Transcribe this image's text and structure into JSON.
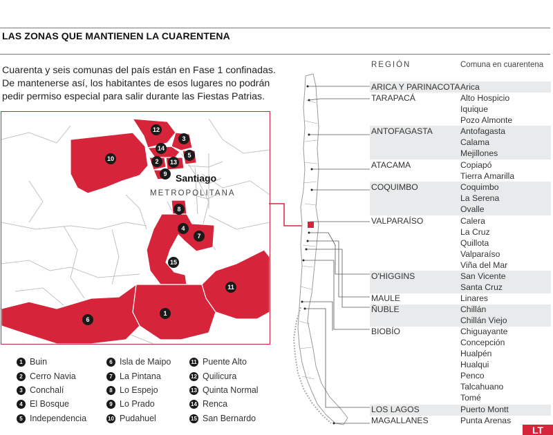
{
  "title": "LAS ZONAS QUE MANTIENEN LA CUARENTENA",
  "intro": [
    "Cuarenta y seis comunas del país están en Fase 1 confinadas.",
    "De mantenerse así, los habitantes de esos lugares no podrán",
    "pedir permiso especial para salir durante las Fiestas Patrias."
  ],
  "map": {
    "city_label": "Santiago",
    "region_label": "METROPOLITANA",
    "markers": [
      "1",
      "2",
      "3",
      "4",
      "5",
      "6",
      "7",
      "8",
      "9",
      "10",
      "11",
      "12",
      "13",
      "14",
      "15"
    ]
  },
  "legend": [
    {
      "num": "1",
      "name": "Buin"
    },
    {
      "num": "2",
      "name": "Cerro Navia"
    },
    {
      "num": "3",
      "name": "Conchalí"
    },
    {
      "num": "4",
      "name": "El Bosque"
    },
    {
      "num": "5",
      "name": "Independencia"
    },
    {
      "num": "6",
      "name": "Isla de Maipo"
    },
    {
      "num": "7",
      "name": "La Pintana"
    },
    {
      "num": "8",
      "name": "Lo Espejo"
    },
    {
      "num": "9",
      "name": "Lo Prado"
    },
    {
      "num": "10",
      "name": "Pudahuel"
    },
    {
      "num": "11",
      "name": "Puente Alto"
    },
    {
      "num": "12",
      "name": "Quilicura"
    },
    {
      "num": "13",
      "name": "Quinta Normal"
    },
    {
      "num": "14",
      "name": "Renca"
    },
    {
      "num": "15",
      "name": "San Bernardo"
    }
  ],
  "table": {
    "header_region": "REGIÓN",
    "header_comuna": "Comuna en cuarentena",
    "regions": [
      {
        "name": "ARICA Y PARINACOTA",
        "comunas": [
          "Arica"
        ]
      },
      {
        "name": "TARAPACÁ",
        "comunas": [
          "Alto Hospicio",
          "Iquique",
          "Pozo Almonte"
        ]
      },
      {
        "name": "ANTOFAGASTA",
        "comunas": [
          "Antofagasta",
          "Calama",
          "Mejillones"
        ]
      },
      {
        "name": "ATACAMA",
        "comunas": [
          "Copiapó",
          "Tierra Amarilla"
        ]
      },
      {
        "name": "COQUIMBO",
        "comunas": [
          "Coquimbo",
          "La Serena",
          "Ovalle"
        ]
      },
      {
        "name": "VALPARAÍSO",
        "comunas": [
          "Calera",
          "La Cruz",
          "Quillota",
          "Valparaíso",
          "Viña del Mar"
        ]
      },
      {
        "name": "O'HIGGINS",
        "comunas": [
          "San Vicente",
          "Santa Cruz"
        ]
      },
      {
        "name": "MAULE",
        "comunas": [
          "Linares"
        ]
      },
      {
        "name": "ÑUBLE",
        "comunas": [
          "Chillán",
          "Chillán Viejo"
        ]
      },
      {
        "name": "BIOBÍO",
        "comunas": [
          "Chiguayante",
          "Concepción",
          "Hualpén",
          "Hualqui",
          "Penco",
          "Talcahuano",
          "Tomé"
        ]
      },
      {
        "name": "LOS LAGOS",
        "comunas": [
          "Puerto Montt"
        ]
      },
      {
        "name": "MAGALLANES",
        "comunas": [
          "Punta Arenas"
        ]
      }
    ]
  },
  "logo_text": "LT",
  "colors": {
    "accent": "#d6243a",
    "band": "#e9eaeb",
    "text": "#333333"
  }
}
